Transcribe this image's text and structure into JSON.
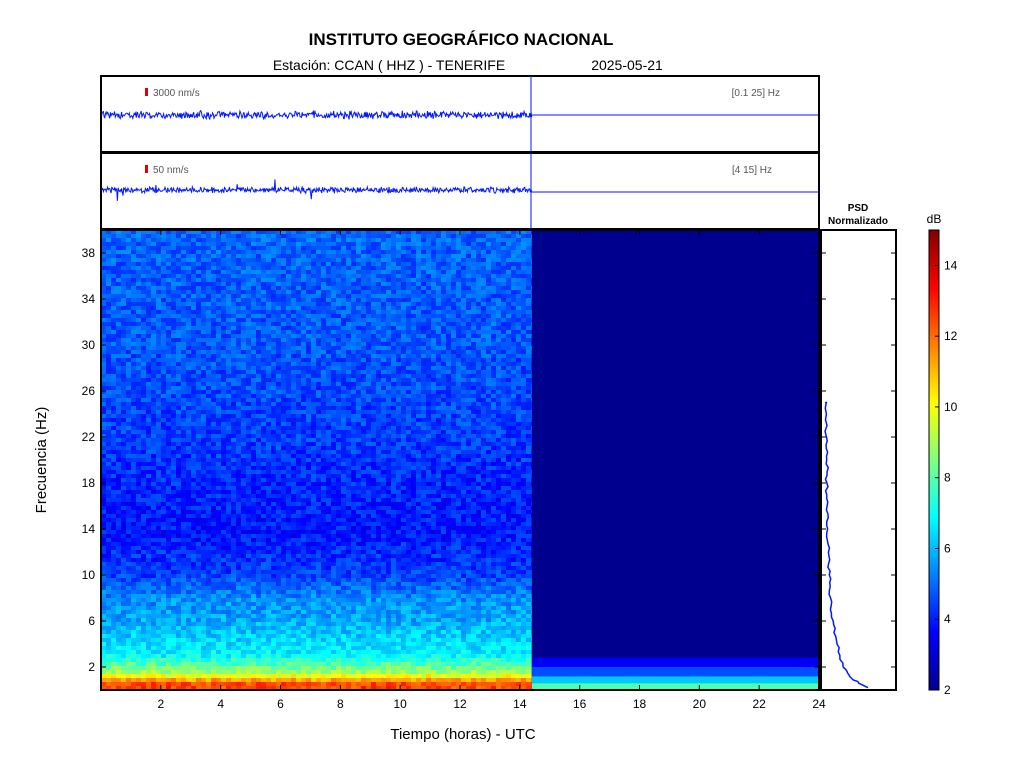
{
  "title": "INSTITUTO GEOGRÁFICO NACIONAL",
  "station_label": "Estación:  CCAN ( HHZ ) - TENERIFE",
  "date": "2025-05-21",
  "traces": [
    {
      "scale_label": "3000 nm/s",
      "band_label": "[0.1 25] Hz"
    },
    {
      "scale_label": "50 nm/s",
      "band_label": "[4 15] Hz"
    }
  ],
  "psd_title_1": "PSD",
  "psd_title_2": "Normalizado",
  "colorbar_unit": "dB",
  "colors": {
    "data": "#0019ff",
    "frame": "#000000",
    "scale_marker": "#e00000"
  },
  "chart_data": {
    "type": "heatmap",
    "xlabel": "Tiempo (horas) - UTC",
    "ylabel": "Frecuencia  (Hz)",
    "xlim": [
      0,
      24
    ],
    "ylim": [
      0,
      40
    ],
    "xticks": [
      2,
      4,
      6,
      8,
      10,
      12,
      14,
      16,
      18,
      20,
      22,
      24
    ],
    "yticks": [
      2,
      6,
      10,
      14,
      18,
      22,
      26,
      30,
      34,
      38
    ],
    "data_end_hour": 14.4,
    "colormap": "jet",
    "colorbar": {
      "min": 2,
      "max": 15,
      "ticks": [
        2,
        4,
        6,
        8,
        10,
        12,
        14
      ],
      "label": "dB"
    },
    "spectrum_profile": [
      {
        "freq": 0.5,
        "db": 12.5
      },
      {
        "freq": 1.5,
        "db": 9.0
      },
      {
        "freq": 3,
        "db": 6.8
      },
      {
        "freq": 6,
        "db": 5.8
      },
      {
        "freq": 8,
        "db": 5.4
      },
      {
        "freq": 10,
        "db": 4.4
      },
      {
        "freq": 14,
        "db": 3.9
      },
      {
        "freq": 18,
        "db": 4.1
      },
      {
        "freq": 22,
        "db": 4.4
      },
      {
        "freq": 30,
        "db": 4.7
      },
      {
        "freq": 40,
        "db": 4.9
      }
    ],
    "psd_normalized": [
      {
        "freq": 0.2,
        "value": 1.0
      },
      {
        "freq": 1,
        "value": 0.62
      },
      {
        "freq": 2,
        "value": 0.42
      },
      {
        "freq": 4,
        "value": 0.28
      },
      {
        "freq": 6,
        "value": 0.19
      },
      {
        "freq": 8,
        "value": 0.13
      },
      {
        "freq": 10,
        "value": 0.1
      },
      {
        "freq": 12,
        "value": 0.08
      },
      {
        "freq": 14,
        "value": 0.06
      },
      {
        "freq": 16,
        "value": 0.05
      },
      {
        "freq": 18,
        "value": 0.045
      },
      {
        "freq": 20,
        "value": 0.04
      },
      {
        "freq": 22,
        "value": 0.035
      },
      {
        "freq": 25,
        "value": 0.03
      }
    ]
  }
}
